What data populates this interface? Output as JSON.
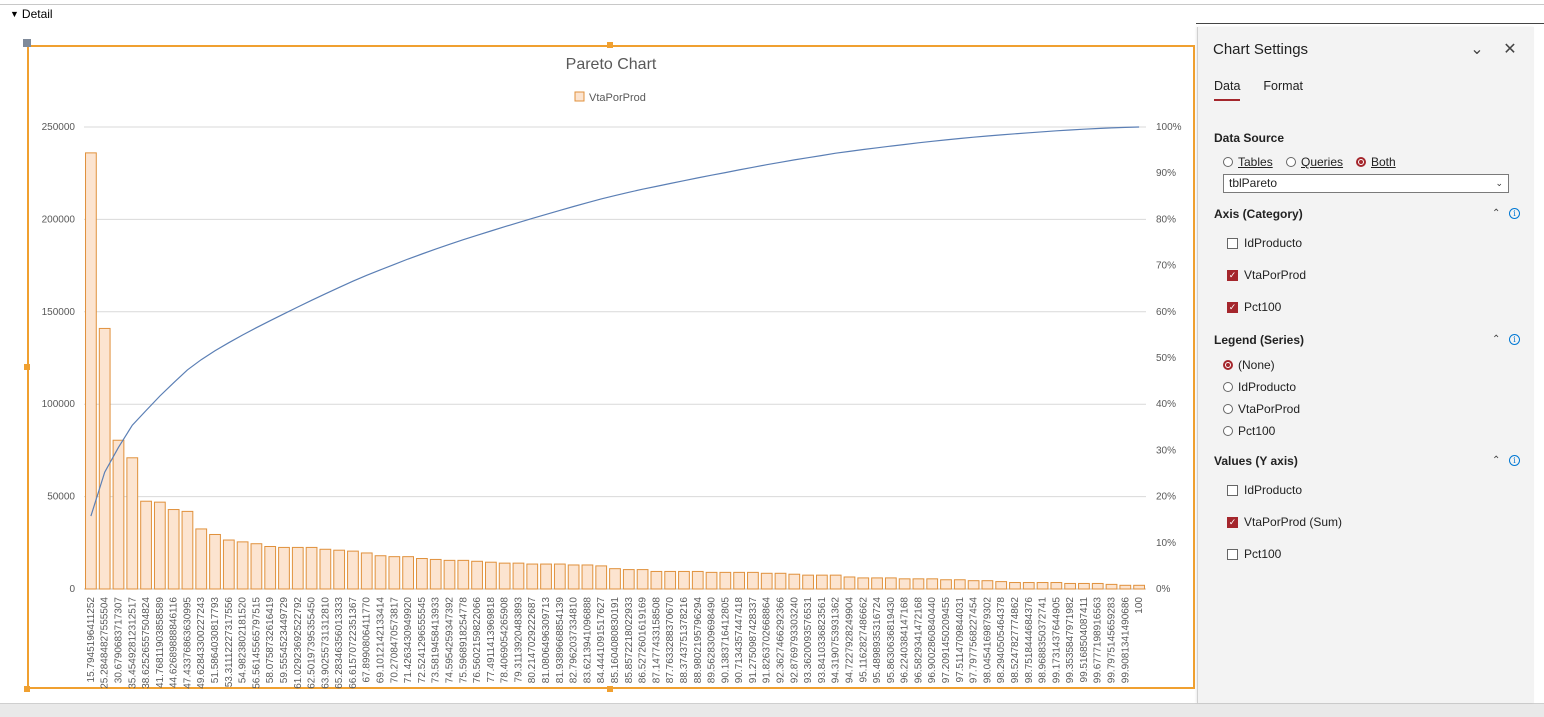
{
  "section": {
    "label": "Detail"
  },
  "chart_data": {
    "type": "bar",
    "title": "Pareto Chart",
    "legend": [
      "VtaPorProd"
    ],
    "legend_position": "top",
    "grid": true,
    "ylim": [
      0,
      250000
    ],
    "y_ticks": [
      "0",
      "50000",
      "100000",
      "150000",
      "200000",
      "250000"
    ],
    "y2lim": [
      0,
      100
    ],
    "y2_ticks": [
      "0%",
      "10%",
      "20%",
      "30%",
      "40%",
      "50%",
      "60%",
      "70%",
      "80%",
      "90%",
      "100%"
    ],
    "colors": {
      "bar_fill": "#fce4d0",
      "bar_stroke": "#e0913c",
      "line": "#5b7fb5",
      "grid": "#d9d9d9"
    },
    "categories": [
      "15.7945196411252",
      "25.28484827555504",
      "30.6790683717307",
      "35.45492812312517",
      "38.62526557504824",
      "41.76811903858589",
      "44.62689888846116",
      "47.43376863630995",
      "49.62843300227243",
      "51.5864030817793",
      "53.31112227317556",
      "54.9823802181520",
      "56.56145565797515",
      "58.0758732616419",
      "59.5554523449729",
      "61.02923692522792",
      "62.50197395355450",
      "63.90255731312810",
      "65.28346356013333",
      "66.61570722351367",
      "67.8990806411770",
      "69.1012142133414",
      "70.2708470573817",
      "71.4263430949920",
      "72.5241296555545",
      "73.5819458413933",
      "74.5954259347392",
      "75.5968918254778",
      "76.5602159822066",
      "77.4911413969818",
      "78.4069054265908",
      "79.3113920483893",
      "80.2147029222687",
      "81.0806496309713",
      "81.9389668854139",
      "82.7962037334810",
      "83.6213941096888",
      "84.4441091517627",
      "85.1604080830191",
      "85.8572218022933",
      "86.5272601619169",
      "87.1477433158508",
      "87.7633288370670",
      "88.3743751378216",
      "88.9802195796294",
      "89.5628309698490",
      "90.1383716412805",
      "90.7134357447418",
      "91.2750987428337",
      "91.8263702668864",
      "92.3627466292366",
      "92.8769793303240",
      "93.3620093576531",
      "93.8410336823561",
      "94.3190753931362",
      "94.7227928249904",
      "95.1162827486662",
      "95.4898935316724",
      "95.8630636819430",
      "96.2240384147168",
      "96.5829341472168",
      "96.9002860840440",
      "97.2091450209455",
      "97.5114709844031",
      "97.7977568227454",
      "98.0454169879302",
      "98.2940505464378",
      "98.5247827774862",
      "98.7518444684376",
      "98.9688350372741",
      "99.1731437644905",
      "99.3535847971982",
      "99.5168504087411",
      "99.6777198916563",
      "99.7975145659283",
      "99.9081341490686",
      "100"
    ],
    "values": [
      236000,
      141000,
      80500,
      71000,
      47500,
      47000,
      43000,
      42000,
      32500,
      29500,
      26500,
      25500,
      24500,
      23000,
      22500,
      22500,
      22500,
      21500,
      21000,
      20500,
      19500,
      18000,
      17500,
      17500,
      16500,
      16000,
      15500,
      15500,
      15000,
      14500,
      14000,
      14000,
      13500,
      13500,
      13500,
      13000,
      13000,
      12500,
      11000,
      10500,
      10500,
      9500,
      9500,
      9500,
      9500,
      9000,
      9000,
      9000,
      9000,
      8500,
      8500,
      8000,
      7500,
      7500,
      7500,
      6500,
      6000,
      6000,
      6000,
      5500,
      5500,
      5500,
      5000,
      5000,
      4500,
      4500,
      4000,
      3500,
      3500,
      3500,
      3500,
      3000,
      3000,
      3000,
      2500,
      2000,
      2000
    ],
    "cumulative_pct": [
      15.79,
      25.28,
      30.68,
      35.45,
      38.63,
      41.77,
      44.63,
      47.43,
      49.63,
      51.59,
      53.31,
      54.98,
      56.56,
      58.08,
      59.56,
      61.03,
      62.5,
      63.9,
      65.28,
      66.62,
      67.9,
      69.1,
      70.27,
      71.43,
      72.52,
      73.58,
      74.6,
      75.6,
      76.56,
      77.49,
      78.41,
      79.31,
      80.21,
      81.08,
      81.94,
      82.8,
      83.62,
      84.44,
      85.16,
      85.86,
      86.53,
      87.15,
      87.76,
      88.37,
      88.98,
      89.56,
      90.14,
      90.71,
      91.28,
      91.83,
      92.36,
      92.88,
      93.36,
      93.84,
      94.32,
      94.72,
      95.12,
      95.49,
      95.86,
      96.22,
      96.58,
      96.9,
      97.21,
      97.51,
      97.8,
      98.05,
      98.29,
      98.52,
      98.75,
      98.97,
      99.17,
      99.35,
      99.52,
      99.68,
      99.8,
      99.91,
      100
    ]
  },
  "panel": {
    "title": "Chart Settings",
    "tabs": [
      {
        "label": "Data",
        "active": true
      },
      {
        "label": "Format",
        "active": false
      }
    ],
    "data_source": {
      "heading": "Data Source",
      "options": [
        {
          "label": "Tables",
          "selected": false
        },
        {
          "label": "Queries",
          "selected": false
        },
        {
          "label": "Both",
          "selected": true
        }
      ],
      "selected_value": "tblPareto"
    },
    "axis": {
      "heading": "Axis (Category)",
      "fields": [
        {
          "label": "IdProducto",
          "checked": false
        },
        {
          "label": "VtaPorProd",
          "checked": true
        },
        {
          "label": "Pct100",
          "checked": true
        }
      ]
    },
    "legend": {
      "heading": "Legend (Series)",
      "options": [
        {
          "label": "(None)",
          "selected": true
        },
        {
          "label": "IdProducto",
          "selected": false
        },
        {
          "label": "VtaPorProd",
          "selected": false
        },
        {
          "label": "Pct100",
          "selected": false
        }
      ]
    },
    "values": {
      "heading": "Values (Y axis)",
      "fields": [
        {
          "label": "IdProducto",
          "checked": false
        },
        {
          "label": "VtaPorProd (Sum)",
          "checked": true
        },
        {
          "label": "Pct100",
          "checked": false
        }
      ]
    }
  }
}
